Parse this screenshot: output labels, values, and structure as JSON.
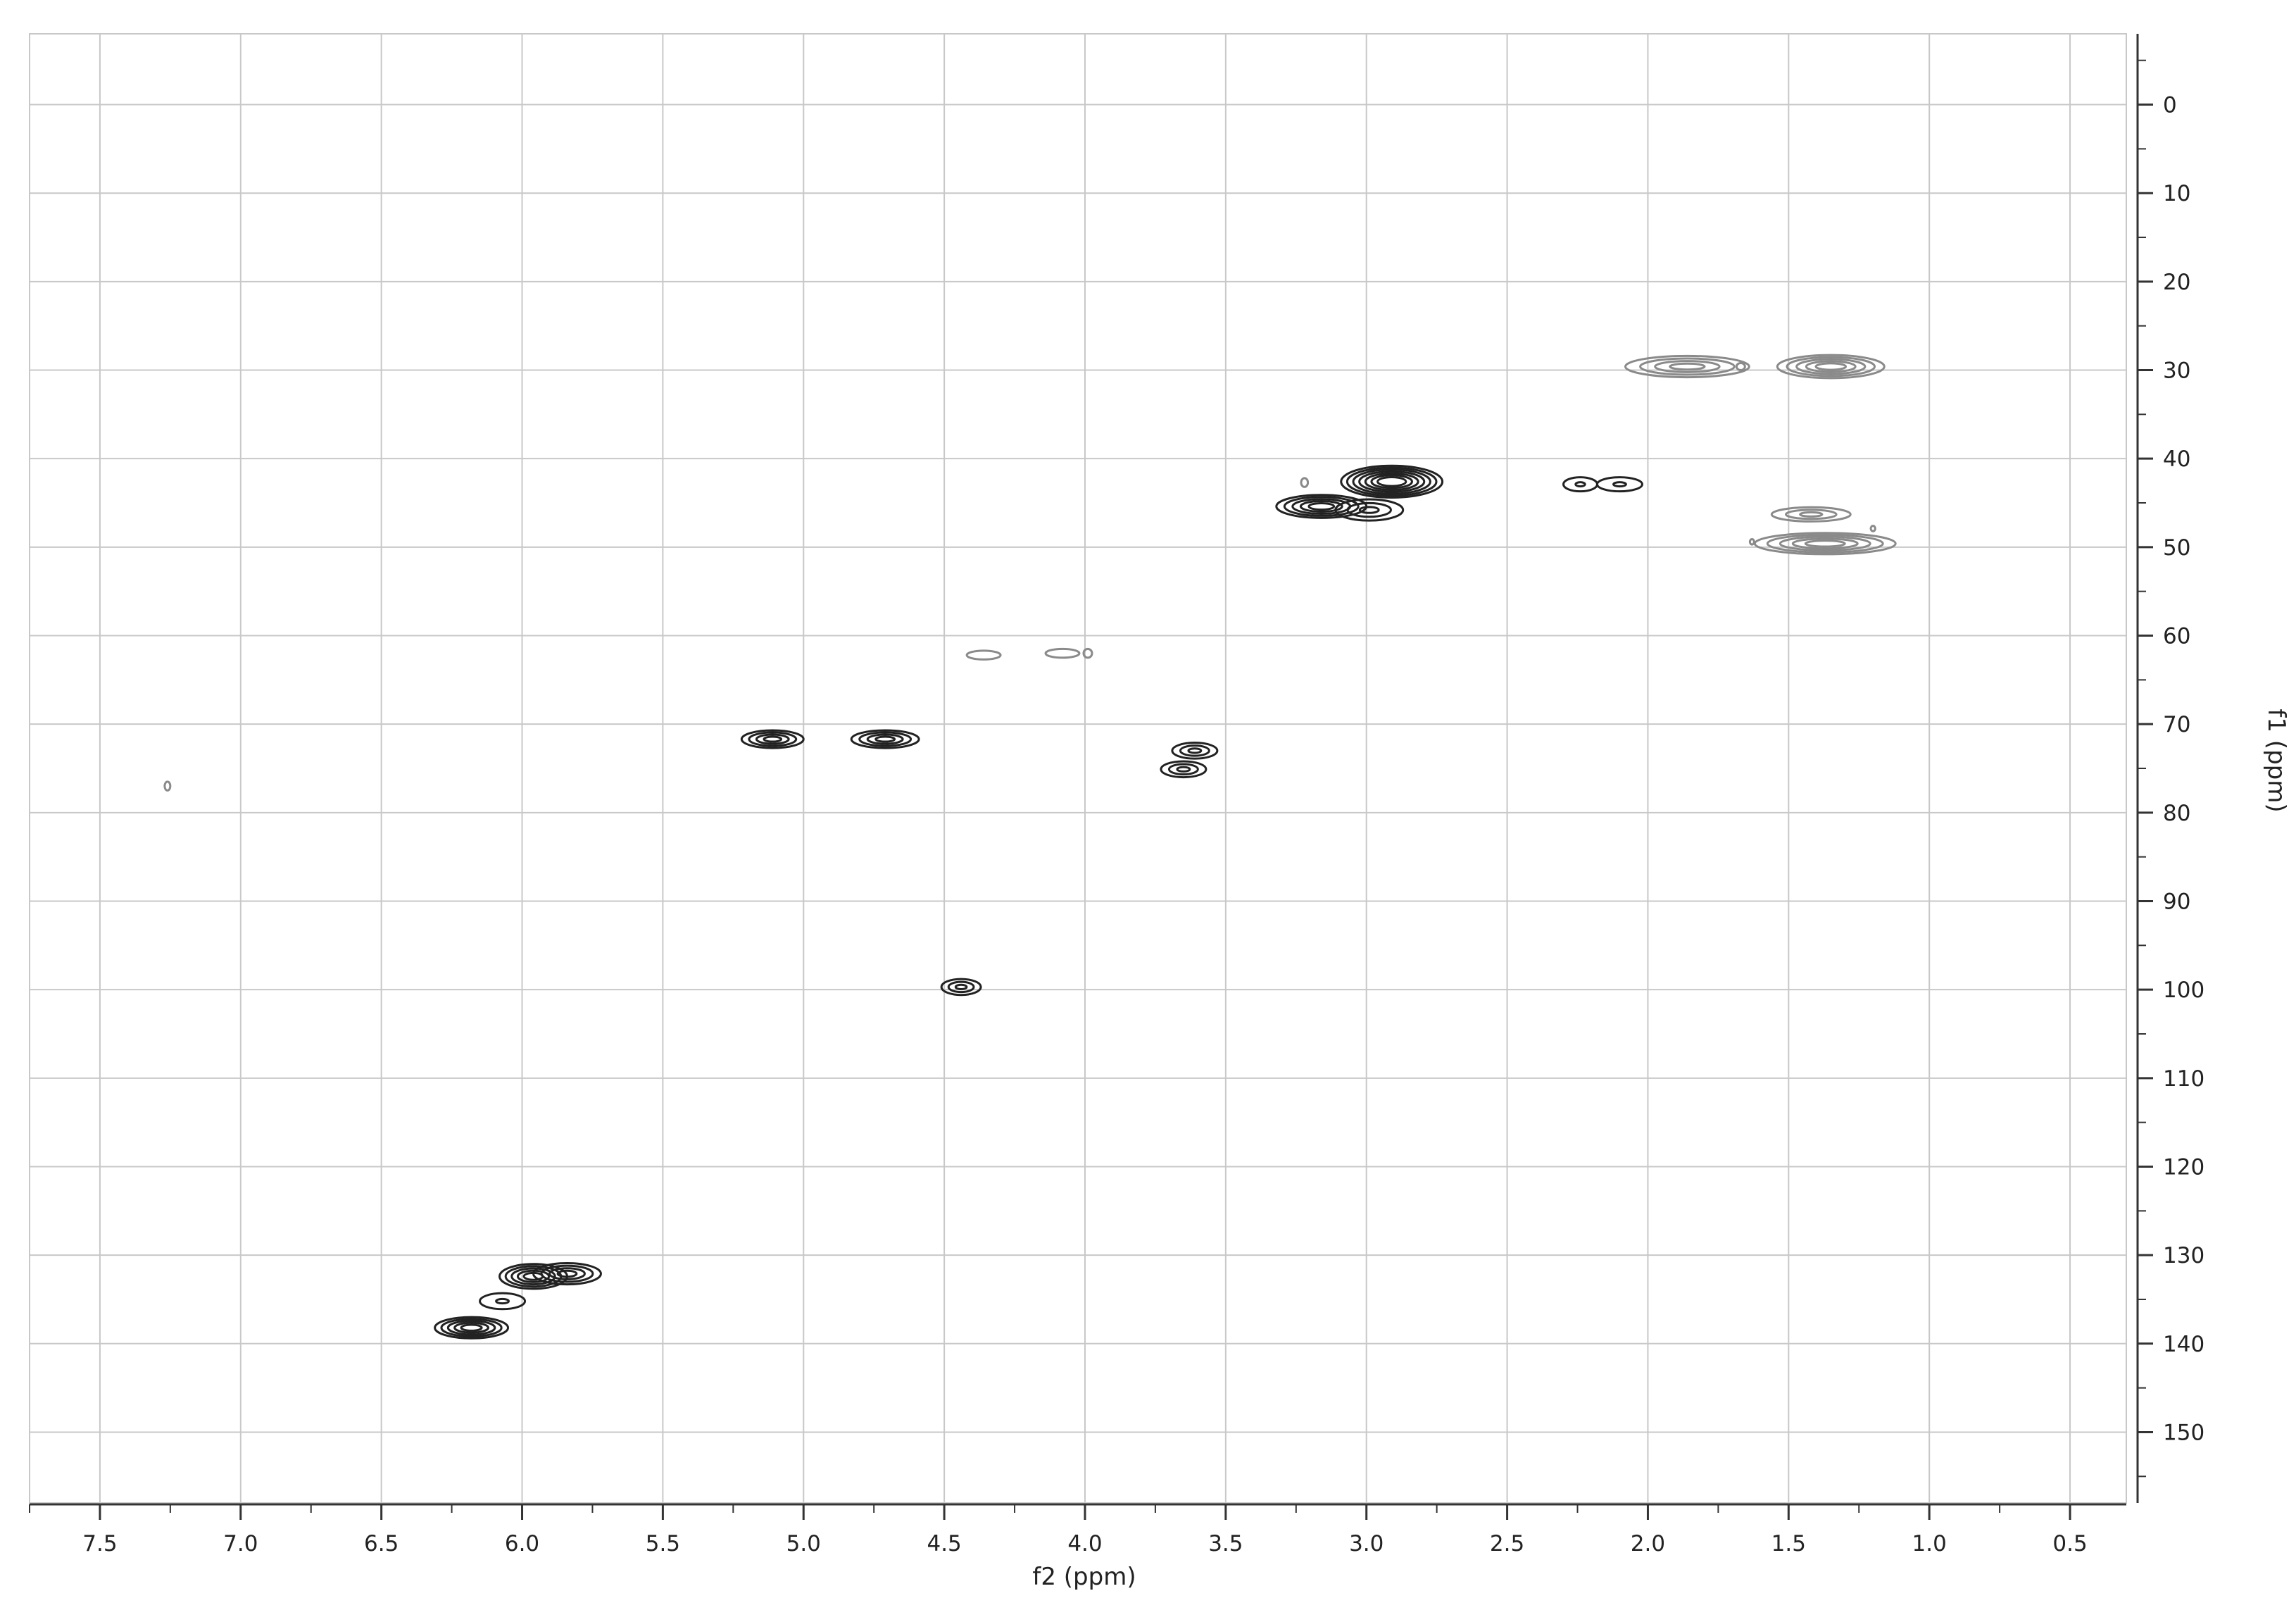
{
  "chart_data": {
    "type": "contour",
    "title": "",
    "xlabel": "f2 (ppm)",
    "ylabel": "f1 (ppm)",
    "xlim": [
      7.75,
      0.3
    ],
    "ylim": [
      -8,
      158
    ],
    "x_reversed": true,
    "y_axis_position": "right",
    "grid": true,
    "x_ticks": [
      7.5,
      7.0,
      6.5,
      6.0,
      5.5,
      5.0,
      4.5,
      4.0,
      3.5,
      3.0,
      2.5,
      2.0,
      1.5,
      1.0,
      0.5
    ],
    "x_tick_labels": [
      "7.5",
      "7.0",
      "6.5",
      "6.0",
      "5.5",
      "5.0",
      "4.5",
      "4.0",
      "3.5",
      "3.0",
      "2.5",
      "2.0",
      "1.5",
      "1.0",
      "0.5"
    ],
    "y_ticks": [
      0,
      10,
      20,
      30,
      40,
      50,
      60,
      70,
      80,
      90,
      100,
      110,
      120,
      130,
      140,
      150
    ],
    "y_tick_labels": [
      "0",
      "10",
      "20",
      "30",
      "40",
      "50",
      "60",
      "70",
      "80",
      "90",
      "100",
      "110",
      "120",
      "130",
      "140",
      "150"
    ],
    "colors": {
      "grid": "#c8c8c8",
      "axis": "#333333",
      "contour_strong": "#222222",
      "contour_weak": "#8a8a8a"
    },
    "peaks": [
      {
        "x": 7.26,
        "y": 77.0,
        "rx": 0.01,
        "ry": 0.5,
        "levels": 1,
        "tone": "weak"
      },
      {
        "x": 6.18,
        "y": 138.2,
        "rx": 0.13,
        "ry": 1.2,
        "levels": 5,
        "tone": "strong"
      },
      {
        "x": 6.07,
        "y": 135.2,
        "rx": 0.08,
        "ry": 0.9,
        "levels": 2,
        "tone": "strong"
      },
      {
        "x": 5.96,
        "y": 132.4,
        "rx": 0.12,
        "ry": 1.4,
        "levels": 5,
        "tone": "strong"
      },
      {
        "x": 5.84,
        "y": 132.1,
        "rx": 0.12,
        "ry": 1.2,
        "levels": 4,
        "tone": "strong"
      },
      {
        "x": 5.11,
        "y": 71.7,
        "rx": 0.11,
        "ry": 1.0,
        "levels": 4,
        "tone": "strong"
      },
      {
        "x": 4.71,
        "y": 71.7,
        "rx": 0.12,
        "ry": 1.0,
        "levels": 4,
        "tone": "strong"
      },
      {
        "x": 4.44,
        "y": 99.7,
        "rx": 0.07,
        "ry": 0.9,
        "levels": 3,
        "tone": "strong"
      },
      {
        "x": 4.36,
        "y": 62.2,
        "rx": 0.06,
        "ry": 0.5,
        "levels": 1,
        "tone": "weak"
      },
      {
        "x": 4.08,
        "y": 62.0,
        "rx": 0.06,
        "ry": 0.5,
        "levels": 1,
        "tone": "weak"
      },
      {
        "x": 3.99,
        "y": 62.0,
        "rx": 0.015,
        "ry": 0.5,
        "levels": 1,
        "tone": "weak"
      },
      {
        "x": 3.61,
        "y": 73.0,
        "rx": 0.08,
        "ry": 0.9,
        "levels": 3,
        "tone": "strong"
      },
      {
        "x": 3.65,
        "y": 75.1,
        "rx": 0.08,
        "ry": 0.9,
        "levels": 3,
        "tone": "strong"
      },
      {
        "x": 3.16,
        "y": 45.4,
        "rx": 0.16,
        "ry": 1.3,
        "levels": 5,
        "tone": "strong"
      },
      {
        "x": 2.91,
        "y": 42.6,
        "rx": 0.18,
        "ry": 1.8,
        "levels": 7,
        "tone": "strong"
      },
      {
        "x": 3.22,
        "y": 42.7,
        "rx": 0.012,
        "ry": 0.5,
        "levels": 1,
        "tone": "weak"
      },
      {
        "x": 2.99,
        "y": 45.8,
        "rx": 0.12,
        "ry": 1.2,
        "levels": 3,
        "tone": "strong"
      },
      {
        "x": 2.24,
        "y": 42.9,
        "rx": 0.06,
        "ry": 0.8,
        "levels": 2,
        "tone": "strong"
      },
      {
        "x": 2.1,
        "y": 42.9,
        "rx": 0.08,
        "ry": 0.8,
        "levels": 2,
        "tone": "strong"
      },
      {
        "x": 1.86,
        "y": 29.6,
        "rx": 0.22,
        "ry": 1.2,
        "levels": 4,
        "tone": "weak"
      },
      {
        "x": 1.67,
        "y": 29.6,
        "rx": 0.015,
        "ry": 0.4,
        "levels": 1,
        "tone": "weak"
      },
      {
        "x": 1.35,
        "y": 29.6,
        "rx": 0.19,
        "ry": 1.3,
        "levels": 5,
        "tone": "weak"
      },
      {
        "x": 1.42,
        "y": 46.3,
        "rx": 0.14,
        "ry": 0.8,
        "levels": 3,
        "tone": "weak"
      },
      {
        "x": 1.37,
        "y": 49.6,
        "rx": 0.25,
        "ry": 1.2,
        "levels": 5,
        "tone": "weak"
      },
      {
        "x": 1.63,
        "y": 49.4,
        "rx": 0.006,
        "ry": 0.3,
        "levels": 1,
        "tone": "weak"
      },
      {
        "x": 1.2,
        "y": 47.9,
        "rx": 0.008,
        "ry": 0.3,
        "levels": 1,
        "tone": "weak"
      }
    ]
  }
}
